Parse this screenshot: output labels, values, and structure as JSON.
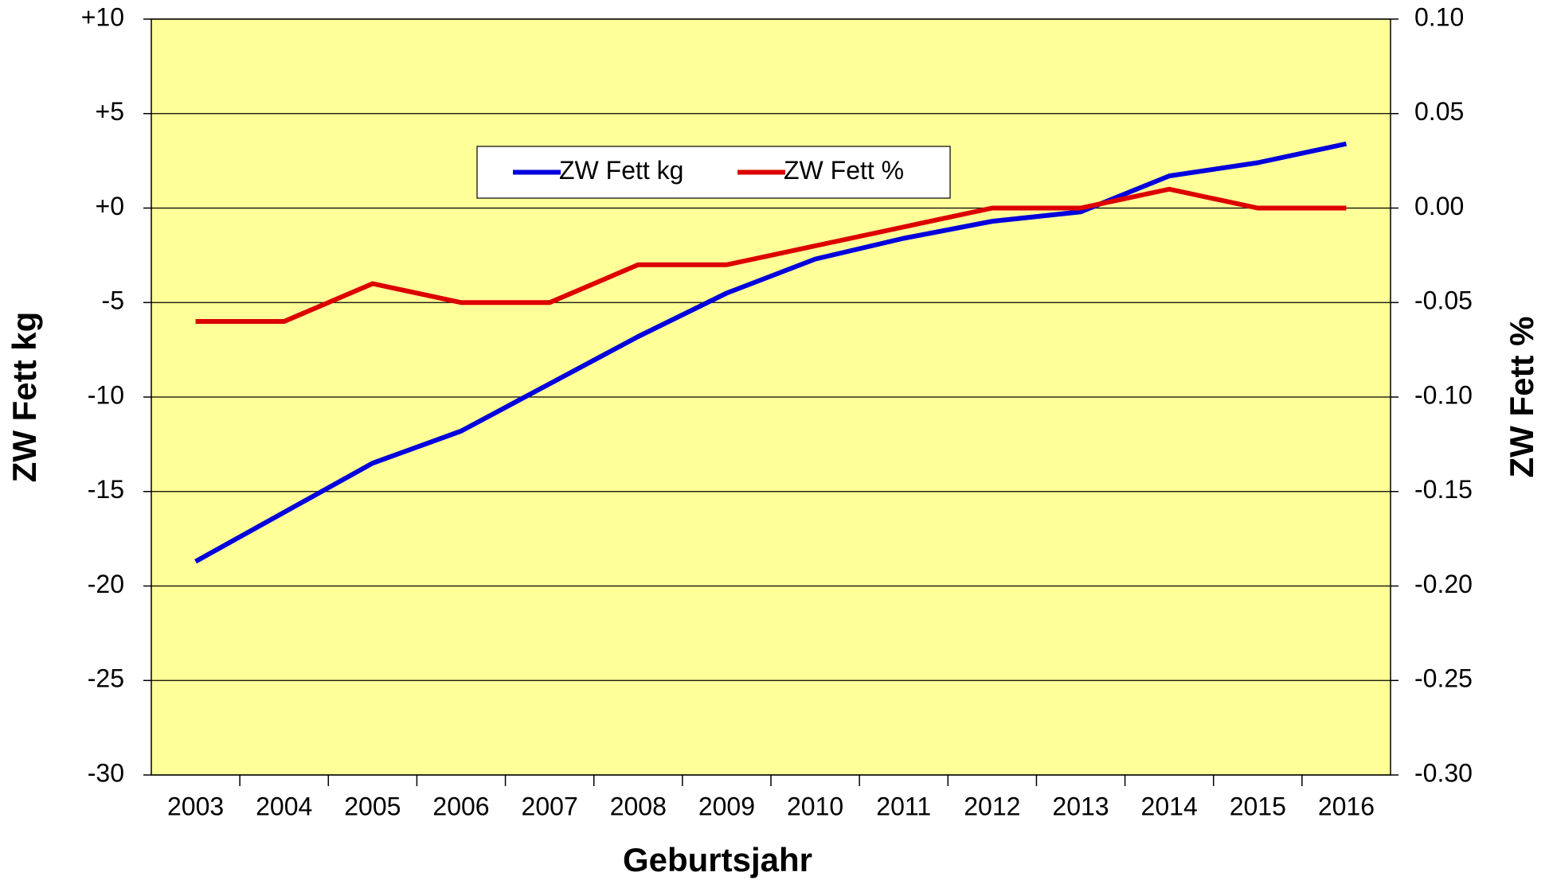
{
  "chart_data": {
    "type": "line",
    "x_label": "Geburtsjahr",
    "y_label": "ZW Fett kg",
    "y2_label": "ZW Fett %",
    "categories": [
      "2003",
      "2004",
      "2005",
      "2006",
      "2007",
      "2008",
      "2009",
      "2010",
      "2011",
      "2012",
      "2013",
      "2014",
      "2015",
      "2016"
    ],
    "series": [
      {
        "name": "ZW Fett kg",
        "color": "#0000dd",
        "values": [
          -18.7,
          -16.1,
          -13.5,
          -11.8,
          -9.3,
          -6.8,
          -4.5,
          -2.7,
          -1.6,
          -0.7,
          -0.2,
          1.7,
          2.4,
          3.4
        ]
      },
      {
        "name": "ZW Fett %",
        "color": "#dd0000",
        "axis": "y2",
        "values": [
          -0.06,
          -0.06,
          -0.04,
          -0.05,
          -0.05,
          -0.03,
          -0.03,
          -0.02,
          -0.01,
          0,
          0,
          0.01,
          0,
          0
        ]
      }
    ],
    "ylim": [
      -30,
      10
    ],
    "yticks": [
      {
        "value": 10,
        "label": "+10"
      },
      {
        "value": 5,
        "label": "+5"
      },
      {
        "value": 0,
        "label": "+0"
      },
      -5,
      -10,
      -15,
      -20,
      -25,
      -30
    ],
    "y2lim": [
      -0.3,
      0.1
    ],
    "y2ticks": [
      {
        "value": 0.1,
        "label": "0.10"
      },
      0.05,
      {
        "value": 0,
        "label": "0.00"
      },
      -0.05,
      {
        "value": -0.1,
        "label": "-0.10"
      },
      -0.15,
      {
        "value": -0.2,
        "label": "-0.20"
      },
      -0.25,
      {
        "value": -0.3,
        "label": "-0.30"
      }
    ],
    "grid": true,
    "plot_background": "#ffff99",
    "legend": "top"
  }
}
